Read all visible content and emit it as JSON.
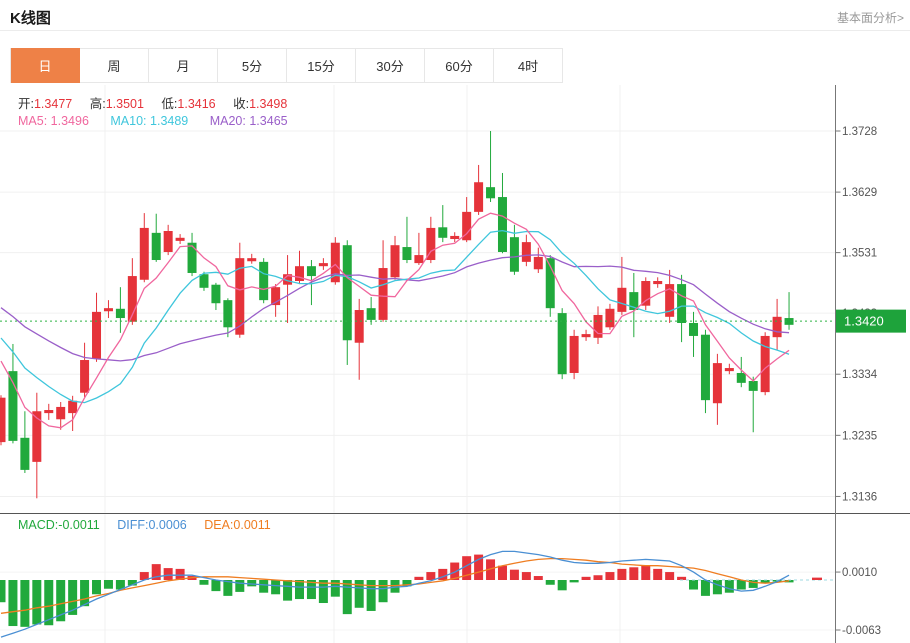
{
  "header": {
    "title": "K线图",
    "analysis_link": "基本面分析>"
  },
  "tabs": {
    "items": [
      {
        "label": "日",
        "active": true
      },
      {
        "label": "周",
        "active": false
      },
      {
        "label": "月",
        "active": false
      },
      {
        "label": "5分",
        "active": false
      },
      {
        "label": "15分",
        "active": false
      },
      {
        "label": "30分",
        "active": false
      },
      {
        "label": "60分",
        "active": false
      },
      {
        "label": "4时",
        "active": false
      }
    ]
  },
  "ohlc_bar": {
    "open_label": "开:",
    "open_value": "1.3477",
    "high_label": "高:",
    "high_value": "1.3501",
    "low_label": "低:",
    "low_value": "1.3416",
    "close_label": "收:",
    "close_value": "1.3498"
  },
  "ma_bar": {
    "ma5_label": "MA5:",
    "ma5_value": "1.3496",
    "ma10_label": "MA10:",
    "ma10_value": "1.3489",
    "ma20_label": "MA20:",
    "ma20_value": "1.3465"
  },
  "macd_bar": {
    "macd_label": "MACD:",
    "macd_value": "-0.0011",
    "diff_label": "DIFF:",
    "diff_value": "0.0006",
    "dea_label": "DEA:",
    "dea_value": "0.0011"
  },
  "colors": {
    "up": "#e5333a",
    "down": "#21a93c",
    "ma5": "#f0679e",
    "ma10": "#3fc6dc",
    "ma20": "#9a5fc9",
    "macd_text": "#21a93c",
    "diff_line": "#4a8fd3",
    "dea_line": "#ef7d21",
    "ohlc_value": "#e5333a",
    "price_line": "#2db345",
    "price_badge": "#1ea33b",
    "tab_active": "#ee8147",
    "axis_text": "#555555",
    "grid": "#f0f0f0"
  },
  "chart_data": [
    {
      "type": "candlestick",
      "title": "K线图",
      "up_color_meaning": "red = close above open (rise)",
      "down_color_meaning": "green = close below open (fall)",
      "y_ticks": [
        {
          "label": "1.3728",
          "value": 1.3728
        },
        {
          "label": "1.3629",
          "value": 1.3629
        },
        {
          "label": "1.3531",
          "value": 1.3531
        },
        {
          "label": "1.3433",
          "value": 1.3433
        },
        {
          "label": "1.3334",
          "value": 1.3334
        },
        {
          "label": "1.3235",
          "value": 1.3235
        },
        {
          "label": "1.3136",
          "value": 1.3136
        }
      ],
      "current_price": {
        "label": "1.3420",
        "value": 1.342
      },
      "ma_series": [
        {
          "name": "MA5",
          "period": 5,
          "display_value": 1.3496
        },
        {
          "name": "MA10",
          "period": 10,
          "display_value": 1.3489
        },
        {
          "name": "MA20",
          "period": 20,
          "display_value": 1.3465
        }
      ],
      "ohlc_display": {
        "open": 1.3477,
        "high": 1.3501,
        "low": 1.3416,
        "close": 1.3498
      },
      "candles_ohlc": [
        [
          1.3224,
          1.33,
          1.3219,
          1.3296
        ],
        [
          1.3339,
          1.3383,
          1.3222,
          1.3226
        ],
        [
          1.3231,
          1.3274,
          1.3174,
          1.3179
        ],
        [
          1.3192,
          1.3304,
          1.3133,
          1.3274
        ],
        [
          1.3271,
          1.3286,
          1.326,
          1.3276
        ],
        [
          1.3261,
          1.3289,
          1.3244,
          1.3281
        ],
        [
          1.3271,
          1.3299,
          1.3242,
          1.3291
        ],
        [
          1.3304,
          1.3385,
          1.3297,
          1.3357
        ],
        [
          1.3359,
          1.3466,
          1.3354,
          1.3435
        ],
        [
          1.3436,
          1.3454,
          1.3425,
          1.3441
        ],
        [
          1.344,
          1.3475,
          1.3401,
          1.3425
        ],
        [
          1.3419,
          1.3522,
          1.3414,
          1.3493
        ],
        [
          1.3487,
          1.3595,
          1.3483,
          1.3571
        ],
        [
          1.3563,
          1.3594,
          1.3516,
          1.3519
        ],
        [
          1.3532,
          1.3576,
          1.3527,
          1.3566
        ],
        [
          1.355,
          1.3561,
          1.3545,
          1.3555
        ],
        [
          1.3547,
          1.3563,
          1.3493,
          1.3498
        ],
        [
          1.3496,
          1.35,
          1.3469,
          1.3474
        ],
        [
          1.3479,
          1.3482,
          1.3438,
          1.3449
        ],
        [
          1.3454,
          1.3457,
          1.3394,
          1.341
        ],
        [
          1.3398,
          1.3547,
          1.3393,
          1.3522
        ],
        [
          1.3517,
          1.3529,
          1.3513,
          1.3522
        ],
        [
          1.3516,
          1.3522,
          1.3449,
          1.3454
        ],
        [
          1.3446,
          1.348,
          1.3427,
          1.3475
        ],
        [
          1.3479,
          1.3527,
          1.3417,
          1.3496
        ],
        [
          1.3485,
          1.3534,
          1.348,
          1.3509
        ],
        [
          1.3509,
          1.3519,
          1.3446,
          1.3493
        ],
        [
          1.3509,
          1.3522,
          1.3503,
          1.3514
        ],
        [
          1.3483,
          1.3556,
          1.3479,
          1.3547
        ],
        [
          1.3543,
          1.3551,
          1.3349,
          1.3389
        ],
        [
          1.3385,
          1.3456,
          1.3325,
          1.3438
        ],
        [
          1.3441,
          1.3459,
          1.3414,
          1.3422
        ],
        [
          1.3422,
          1.3551,
          1.3419,
          1.3506
        ],
        [
          1.3491,
          1.3558,
          1.3487,
          1.3543
        ],
        [
          1.354,
          1.3589,
          1.3514,
          1.3519
        ],
        [
          1.3514,
          1.3563,
          1.3511,
          1.3527
        ],
        [
          1.3519,
          1.3589,
          1.3514,
          1.3571
        ],
        [
          1.3572,
          1.3608,
          1.3548,
          1.3555
        ],
        [
          1.3553,
          1.3564,
          1.3548,
          1.3558
        ],
        [
          1.3551,
          1.3621,
          1.3548,
          1.3597
        ],
        [
          1.3597,
          1.3673,
          1.3592,
          1.3645
        ],
        [
          1.3637,
          1.3728,
          1.3613,
          1.3619
        ],
        [
          1.3621,
          1.366,
          1.353,
          1.3532
        ],
        [
          1.3556,
          1.3576,
          1.3495,
          1.35
        ],
        [
          1.3516,
          1.356,
          1.3509,
          1.3548
        ],
        [
          1.3504,
          1.3539,
          1.3498,
          1.3524
        ],
        [
          1.3522,
          1.3527,
          1.3427,
          1.3441
        ],
        [
          1.3433,
          1.3441,
          1.3326,
          1.3334
        ],
        [
          1.3336,
          1.3406,
          1.3326,
          1.3396
        ],
        [
          1.3394,
          1.3406,
          1.3388,
          1.3399
        ],
        [
          1.3393,
          1.3444,
          1.3383,
          1.343
        ],
        [
          1.341,
          1.3448,
          1.3406,
          1.344
        ],
        [
          1.3435,
          1.3524,
          1.343,
          1.3474
        ],
        [
          1.3467,
          1.3498,
          1.3394,
          1.3438
        ],
        [
          1.3445,
          1.3491,
          1.3438,
          1.3485
        ],
        [
          1.348,
          1.3491,
          1.3474,
          1.3485
        ],
        [
          1.3427,
          1.3503,
          1.3417,
          1.348
        ],
        [
          1.348,
          1.3495,
          1.3386,
          1.3417
        ],
        [
          1.3417,
          1.3435,
          1.3362,
          1.3396
        ],
        [
          1.3398,
          1.3406,
          1.3271,
          1.3292
        ],
        [
          1.3287,
          1.3367,
          1.3252,
          1.3352
        ],
        [
          1.3339,
          1.3351,
          1.3334,
          1.3344
        ],
        [
          1.3336,
          1.3362,
          1.3313,
          1.332
        ],
        [
          1.3323,
          1.333,
          1.324,
          1.3307
        ],
        [
          1.3305,
          1.3402,
          1.33,
          1.3396
        ],
        [
          1.3394,
          1.3456,
          1.3373,
          1.3427
        ],
        [
          1.3425,
          1.3467,
          1.3406,
          1.3414
        ]
      ]
    },
    {
      "type": "bar",
      "title": "MACD",
      "y_ticks": [
        {
          "label": "0.0010",
          "value": 0.001
        },
        {
          "label": "-0.0063",
          "value": -0.0063
        }
      ],
      "display_values": {
        "MACD": -0.0011,
        "DIFF": 0.0006,
        "DEA": 0.0011
      },
      "histogram": [
        -0.0028,
        -0.0058,
        -0.0059,
        -0.0056,
        -0.0057,
        -0.0052,
        -0.0044,
        -0.0033,
        -0.0018,
        -0.0011,
        -0.0012,
        -0.0007,
        0.001,
        0.002,
        0.0015,
        0.0014,
        0.0005,
        -0.0006,
        -0.0014,
        -0.002,
        -0.0015,
        -0.0008,
        -0.0016,
        -0.0018,
        -0.0026,
        -0.0024,
        -0.0024,
        -0.0029,
        -0.0021,
        -0.0043,
        -0.0035,
        -0.0039,
        -0.0028,
        -0.0016,
        -0.0008,
        0.0004,
        0.001,
        0.0014,
        0.0022,
        0.003,
        0.0032,
        0.0026,
        0.0018,
        0.0013,
        0.001,
        0.0005,
        -0.0006,
        -0.0013,
        -0.0003,
        0.0004,
        0.0006,
        0.001,
        0.0014,
        0.0016,
        0.0018,
        0.0014,
        0.001,
        0.0004,
        -0.0012,
        -0.002,
        -0.0018,
        -0.0016,
        -0.0012,
        -0.001,
        -0.0004,
        -0.0002,
        -0.0003
      ],
      "diff": [
        -0.0072,
        -0.0067,
        -0.0062,
        -0.0056,
        -0.005,
        -0.0044,
        -0.0038,
        -0.0031,
        -0.0024,
        -0.0018,
        -0.0012,
        -0.0006,
        0.0,
        0.0004,
        0.0006,
        0.0006,
        0.0006,
        0.0003,
        0.0,
        -0.0002,
        -0.0004,
        -0.0005,
        -0.0006,
        -0.0007,
        -0.0008,
        -0.0009,
        -0.0009,
        -0.0009,
        -0.0008,
        -0.0009,
        -0.001,
        -0.0011,
        -0.0011,
        -0.0009,
        -0.0008,
        -0.0004,
        -0.0001,
        0.0004,
        0.001,
        0.0018,
        0.0026,
        0.0032,
        0.0036,
        0.0036,
        0.0034,
        0.0032,
        0.0029,
        0.0025,
        0.0022,
        0.0021,
        0.0021,
        0.0022,
        0.0024,
        0.0025,
        0.0026,
        0.0025,
        0.0024,
        0.0018,
        0.001,
        0.0,
        -0.0006,
        -0.0011,
        -0.0014,
        -0.0013,
        -0.0008,
        -0.0002,
        0.0006
      ],
      "dea": [
        -0.0042,
        -0.004,
        -0.0038,
        -0.0035,
        -0.0033,
        -0.003,
        -0.0027,
        -0.0024,
        -0.002,
        -0.0017,
        -0.0013,
        -0.001,
        -0.0007,
        -0.0004,
        -0.0001,
        0.0001,
        0.0003,
        0.0004,
        0.0004,
        0.0004,
        0.0003,
        0.0002,
        0.0001,
        0.0,
        -0.0001,
        -0.0002,
        -0.0003,
        -0.0004,
        -0.0004,
        -0.0005,
        -0.0006,
        -0.0007,
        -0.0007,
        -0.0007,
        -0.0006,
        -0.0005,
        -0.0003,
        -0.0001,
        0.0002,
        0.0006,
        0.001,
        0.0014,
        0.0018,
        0.0021,
        0.0024,
        0.0026,
        0.0027,
        0.0027,
        0.0026,
        0.0025,
        0.0023,
        0.0022,
        0.002,
        0.0019,
        0.0018,
        0.0018,
        0.0017,
        0.0016,
        0.0015,
        0.0012,
        0.0008,
        0.0004,
        0.0,
        -0.0003,
        -0.0004,
        -0.0003,
        -0.0001
      ],
      "right_marker_value": 0.0003
    }
  ]
}
